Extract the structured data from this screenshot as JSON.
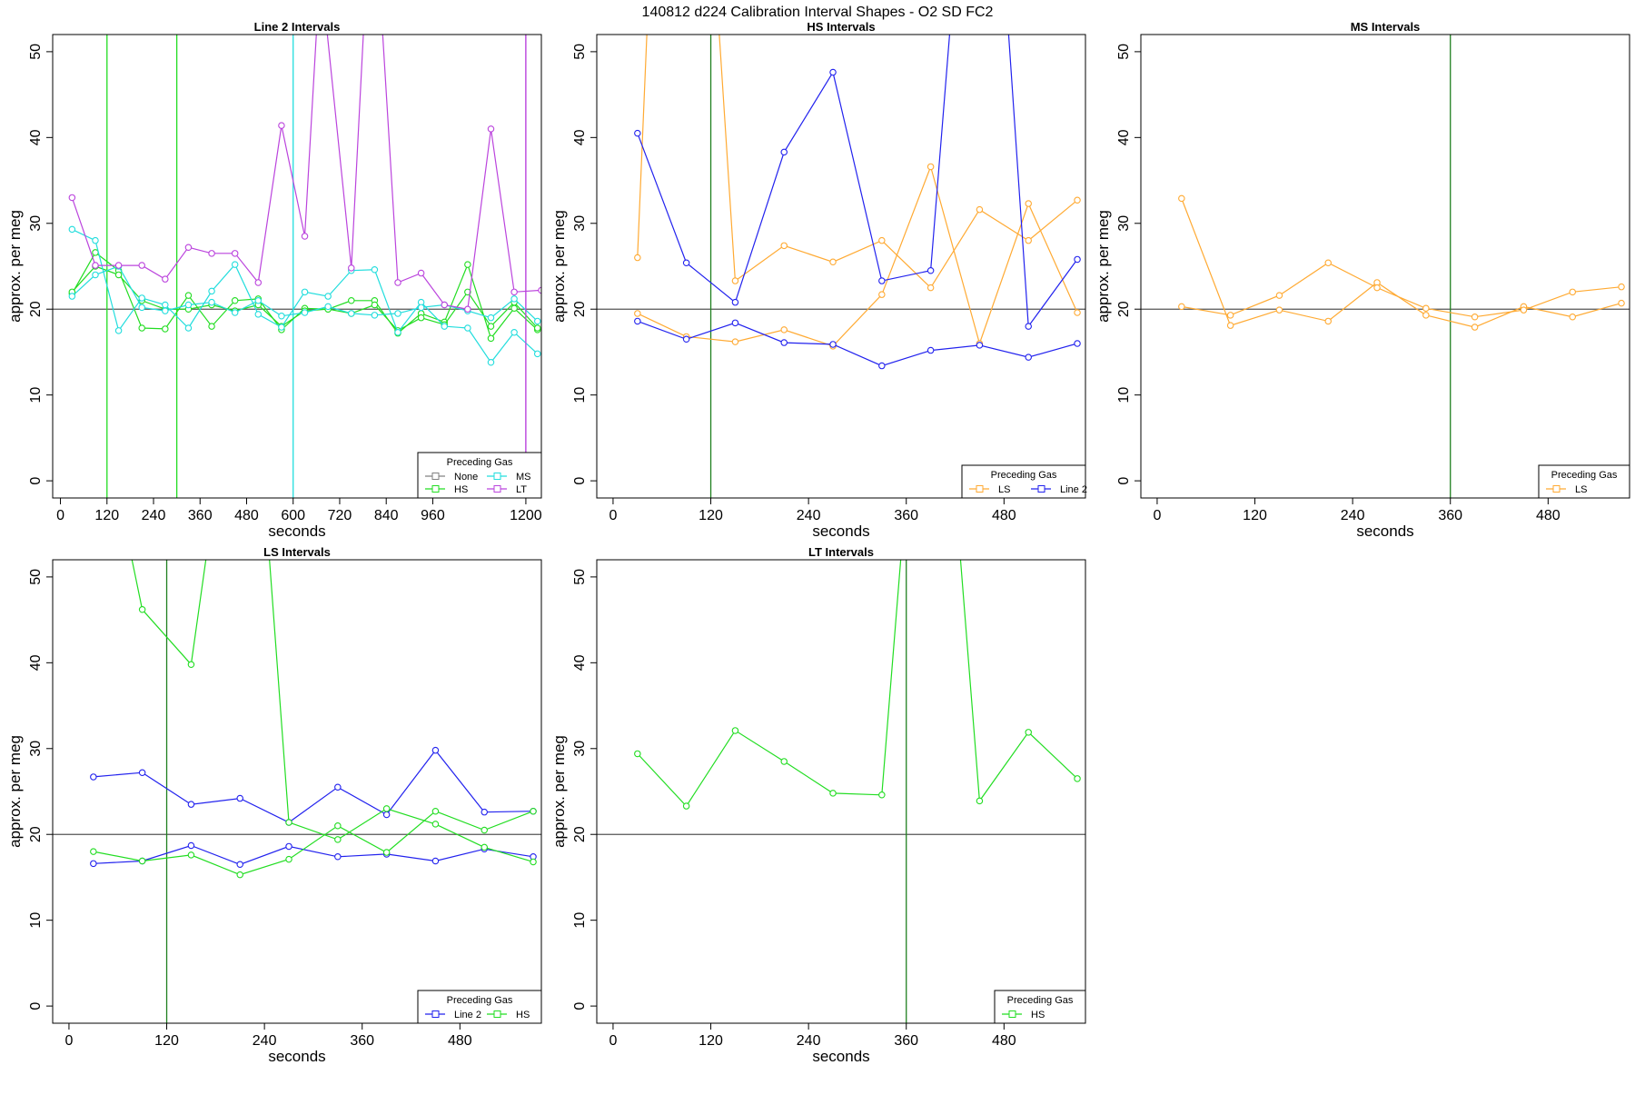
{
  "page_title": "140812   d224   Calibration Interval Shapes - O2 SD FC2",
  "colors": {
    "None": "#808080",
    "HS": "#22dd22",
    "MS": "#22dddd",
    "LT": "#bb44dd",
    "LS": "#ffaa33",
    "Line 2": "#2222ee",
    "vline_green": "#208020",
    "vline_green_light": "#22dd22",
    "vline_cyan": "#22dddd",
    "vline_purple": "#bb44dd",
    "axis": "#000000",
    "refline": "#555555"
  },
  "chart_data": [
    {
      "id": "line2",
      "type": "line",
      "title": "Line 2 Intervals",
      "xlabel": "seconds",
      "ylabel": "approx. per meg",
      "xlim": [
        -20,
        1240
      ],
      "ylim": [
        -2,
        52
      ],
      "xticks": [
        0,
        120,
        240,
        360,
        480,
        600,
        720,
        840,
        960,
        1200
      ],
      "yticks": [
        0,
        10,
        20,
        30,
        40,
        50
      ],
      "hline": 20,
      "vlines": [
        {
          "x": 120,
          "color": "vline_green_light"
        },
        {
          "x": 300,
          "color": "vline_green_light"
        },
        {
          "x": 600,
          "color": "vline_cyan"
        },
        {
          "x": 1200,
          "color": "vline_purple"
        }
      ],
      "legend": {
        "title": "Preceding Gas",
        "position": "bottom-right",
        "columns": 2,
        "entries": [
          "None",
          "MS",
          "HS",
          "LT"
        ]
      },
      "series": [
        {
          "name": "HS",
          "lines": [
            {
              "x": [
                30,
                90,
                150,
                210,
                270,
                330,
                390,
                450,
                510,
                570,
                630,
                690,
                750,
                810,
                870,
                930,
                990,
                1050,
                1110,
                1170,
                1230
              ],
              "y": [
                21.8,
                26.6,
                24.5,
                17.8,
                17.7,
                21.6,
                18.0,
                21.0,
                21.2,
                17.6,
                20.1,
                20.0,
                21.0,
                21.0,
                17.2,
                19.5,
                18.5,
                25.2,
                16.6,
                20.1,
                17.6
              ]
            },
            {
              "x": [
                30,
                90,
                150,
                210,
                270,
                330,
                390,
                450,
                510,
                570,
                630,
                690,
                750,
                810,
                870,
                930,
                990,
                1050,
                1110,
                1170,
                1230
              ],
              "y": [
                22.0,
                25.0,
                24.0,
                21.0,
                20.0,
                20.0,
                20.5,
                19.8,
                20.5,
                18.0,
                19.8,
                20.0,
                19.5,
                20.5,
                17.5,
                19.0,
                18.2,
                22.0,
                18.0,
                20.8,
                17.8
              ]
            }
          ]
        },
        {
          "name": "MS",
          "lines": [
            {
              "x": [
                30,
                90,
                150,
                210,
                270,
                330,
                390,
                450,
                510,
                570,
                630,
                690,
                750,
                810,
                870,
                930,
                990,
                1050,
                1110,
                1170,
                1230
              ],
              "y": [
                29.3,
                28.0,
                17.5,
                21.3,
                20.5,
                17.8,
                22.1,
                25.2,
                19.4,
                17.9,
                22.0,
                21.5,
                24.5,
                24.6,
                17.3,
                20.8,
                18.0,
                17.8,
                13.8,
                17.3,
                14.8
              ]
            },
            {
              "x": [
                30,
                90,
                150,
                210,
                270,
                330,
                390,
                450,
                510,
                570,
                630,
                690,
                750,
                810,
                870,
                930,
                990,
                1050,
                1110,
                1170,
                1230
              ],
              "y": [
                21.5,
                24.0,
                25.0,
                20.2,
                19.8,
                20.5,
                20.8,
                19.6,
                21.0,
                19.2,
                19.6,
                20.3,
                19.5,
                19.3,
                19.5,
                20.2,
                20.5,
                19.8,
                19.0,
                21.2,
                18.6
              ]
            }
          ]
        },
        {
          "name": "LT",
          "lines": [
            {
              "x": [
                30,
                90,
                150,
                210,
                270,
                330,
                390,
                450,
                510,
                570,
                630,
                670,
                750,
                790,
                820,
                870,
                930,
                990,
                1050,
                1110,
                1170,
                1240
              ],
              "y": [
                33.0,
                25.1,
                25.1,
                25.1,
                23.5,
                27.2,
                26.5,
                26.5,
                23.1,
                41.4,
                28.5,
                60,
                24.8,
                60,
                60,
                23.1,
                24.2,
                20.5,
                20.0,
                41.0,
                22.0,
                22.2
              ]
            },
            {
              "x": [
                1200,
                1200
              ],
              "y": [
                -2,
                60
              ]
            }
          ]
        }
      ]
    },
    {
      "id": "hs",
      "type": "line",
      "title": "HS Intervals",
      "xlabel": "seconds",
      "ylabel": "approx. per meg",
      "xlim": [
        -20,
        580
      ],
      "ylim": [
        -2,
        52
      ],
      "xticks": [
        0,
        120,
        240,
        360,
        480
      ],
      "yticks": [
        0,
        10,
        20,
        30,
        40,
        50
      ],
      "hline": 20,
      "vlines": [
        {
          "x": 120,
          "color": "vline_green"
        }
      ],
      "legend": {
        "title": "Preceding Gas",
        "position": "bottom-right",
        "columns": 2,
        "entries": [
          "LS",
          "Line 2"
        ]
      },
      "series": [
        {
          "name": "LS",
          "lines": [
            {
              "x": [
                30,
                45,
                125,
                150,
                210,
                270,
                330,
                390,
                450,
                510,
                570
              ],
              "y": [
                26.0,
                60,
                60,
                23.3,
                27.4,
                25.5,
                28.0,
                22.5,
                31.6,
                28.0,
                32.7
              ]
            },
            {
              "x": [
                30,
                90,
                150,
                210,
                270,
                330,
                390,
                450,
                510,
                570
              ],
              "y": [
                19.5,
                16.8,
                16.2,
                17.6,
                15.7,
                21.7,
                36.6,
                16.0,
                32.3,
                19.6
              ]
            }
          ]
        },
        {
          "name": "Line 2",
          "lines": [
            {
              "x": [
                30,
                90,
                150,
                210,
                270,
                330,
                390,
                420,
                480,
                510,
                570
              ],
              "y": [
                40.5,
                25.4,
                20.8,
                38.3,
                47.6,
                23.3,
                24.5,
                60,
                60,
                18.0,
                25.8
              ]
            },
            {
              "x": [
                30,
                90,
                150,
                210,
                270,
                330,
                390,
                450,
                510,
                570
              ],
              "y": [
                18.6,
                16.5,
                18.4,
                16.1,
                15.9,
                13.4,
                15.2,
                15.8,
                14.4,
                16.0
              ]
            }
          ]
        }
      ]
    },
    {
      "id": "ms",
      "type": "line",
      "title": "MS Intervals",
      "xlabel": "seconds",
      "ylabel": "approx. per meg",
      "xlim": [
        -20,
        580
      ],
      "ylim": [
        -2,
        52
      ],
      "xticks": [
        0,
        120,
        240,
        360,
        480
      ],
      "yticks": [
        0,
        10,
        20,
        30,
        40,
        50
      ],
      "hline": 20,
      "vlines": [
        {
          "x": 360,
          "color": "vline_green"
        }
      ],
      "legend": {
        "title": "Preceding Gas",
        "position": "bottom-right",
        "columns": 1,
        "entries": [
          "LS"
        ]
      },
      "series": [
        {
          "name": "LS",
          "lines": [
            {
              "x": [
                30,
                90,
                150,
                210,
                270,
                330,
                390,
                450,
                510,
                570
              ],
              "y": [
                32.9,
                18.1,
                19.9,
                18.6,
                23.1,
                19.3,
                17.9,
                20.3,
                19.1,
                20.7
              ]
            },
            {
              "x": [
                30,
                90,
                150,
                210,
                270,
                330,
                390,
                450,
                510,
                570
              ],
              "y": [
                20.3,
                19.3,
                21.6,
                25.4,
                22.5,
                20.1,
                19.1,
                19.9,
                22.0,
                22.6
              ]
            }
          ]
        }
      ]
    },
    {
      "id": "ls",
      "type": "line",
      "title": "LS Intervals",
      "xlabel": "seconds",
      "ylabel": "approx. per meg",
      "xlim": [
        -20,
        580
      ],
      "ylim": [
        -2,
        52
      ],
      "xticks": [
        0,
        120,
        240,
        360,
        480
      ],
      "yticks": [
        0,
        10,
        20,
        30,
        40,
        50
      ],
      "hline": 20,
      "vlines": [
        {
          "x": 120,
          "color": "vline_green"
        }
      ],
      "legend": {
        "title": "Preceding Gas",
        "position": "bottom-right",
        "columns": 2,
        "entries": [
          "Line 2",
          "HS"
        ]
      },
      "series": [
        {
          "name": "Line 2",
          "lines": [
            {
              "x": [
                30,
                90,
                150,
                210,
                270,
                330,
                390,
                450,
                510,
                570
              ],
              "y": [
                26.7,
                27.2,
                23.5,
                24.2,
                21.4,
                25.5,
                22.3,
                29.8,
                22.6,
                22.7
              ]
            },
            {
              "x": [
                30,
                90,
                150,
                210,
                270,
                330,
                390,
                450,
                510,
                570
              ],
              "y": [
                16.6,
                16.9,
                18.7,
                16.5,
                18.6,
                17.4,
                17.7,
                16.9,
                18.3,
                17.4
              ]
            }
          ]
        },
        {
          "name": "HS",
          "lines": [
            {
              "x": [
                60,
                90,
                150,
                180,
                240,
                270,
                330,
                390,
                450,
                510,
                570
              ],
              "y": [
                60,
                46.2,
                39.8,
                60,
                60,
                21.4,
                19.4,
                23.0,
                21.2,
                18.5,
                16.8
              ]
            },
            {
              "x": [
                30,
                90,
                150,
                210,
                270,
                330,
                390,
                450,
                510,
                570
              ],
              "y": [
                18.0,
                16.9,
                17.6,
                15.3,
                17.1,
                21.0,
                17.9,
                22.7,
                20.5,
                22.7
              ]
            }
          ]
        }
      ]
    },
    {
      "id": "lt",
      "type": "line",
      "title": "LT Intervals",
      "xlabel": "seconds",
      "ylabel": "approx. per meg",
      "xlim": [
        -20,
        580
      ],
      "ylim": [
        -2,
        52
      ],
      "xticks": [
        0,
        120,
        240,
        360,
        480
      ],
      "yticks": [
        0,
        10,
        20,
        30,
        40,
        50
      ],
      "hline": 20,
      "vlines": [
        {
          "x": 360,
          "color": "vline_green"
        }
      ],
      "legend": {
        "title": "Preceding Gas",
        "position": "bottom-right",
        "columns": 1,
        "entries": [
          "HS"
        ]
      },
      "series": [
        {
          "name": "HS",
          "lines": [
            {
              "x": [
                30,
                90,
                150,
                210,
                270,
                330,
                360,
                420,
                450,
                510,
                570
              ],
              "y": [
                29.4,
                23.3,
                32.1,
                28.5,
                24.8,
                24.6,
                60,
                60,
                23.9,
                31.9,
                26.5
              ]
            }
          ]
        }
      ]
    }
  ]
}
